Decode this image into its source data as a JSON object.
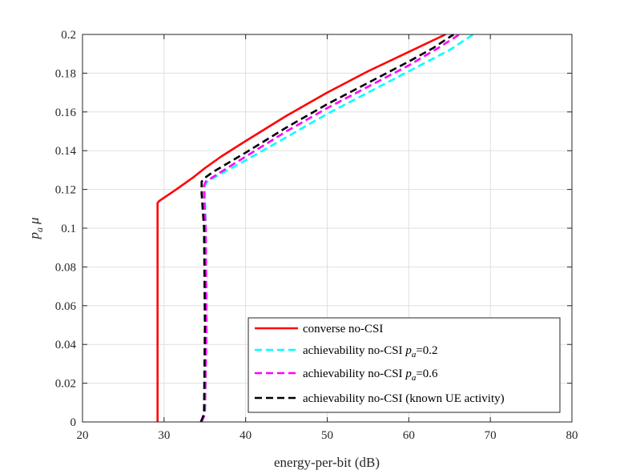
{
  "chart_data": {
    "type": "line",
    "title": "",
    "xlabel": "energy-per-bit (dB)",
    "ylabel": {
      "p": "p",
      "sub": "a",
      "mu": "μ"
    },
    "xlim": [
      20,
      80
    ],
    "ylim": [
      0,
      0.2
    ],
    "xticks": [
      20,
      30,
      40,
      50,
      60,
      70,
      80
    ],
    "yticks": [
      0,
      0.02,
      0.04,
      0.06,
      0.08,
      0.1,
      0.12,
      0.14,
      0.16,
      0.18,
      0.2
    ],
    "xtick_labels": [
      "20",
      "30",
      "40",
      "50",
      "60",
      "70",
      "80"
    ],
    "ytick_labels": [
      "0",
      "0.02",
      "0.04",
      "0.06",
      "0.08",
      "0.1",
      "0.12",
      "0.14",
      "0.16",
      "0.18",
      "0.2"
    ],
    "grid": true,
    "legend_position": "bottom-right",
    "series": [
      {
        "name": "converse no-CSI",
        "legend": {
          "text": "converse no-CSI"
        },
        "color": "#ff0000",
        "dash": "solid",
        "x": [
          29.2,
          29.2,
          29.2,
          29.4,
          31.5,
          33.5,
          35.0,
          37.0,
          40.0,
          45.0,
          50.0,
          55.0,
          60.0,
          64.5
        ],
        "y": [
          0,
          0.05,
          0.113,
          0.114,
          0.12,
          0.126,
          0.131,
          0.137,
          0.145,
          0.158,
          0.17,
          0.181,
          0.191,
          0.2
        ]
      },
      {
        "name": "achievability no-CSI pa=0.2",
        "legend": {
          "text": "achievability no-CSI ",
          "var": "p",
          "sub": "a",
          "suffix": "=0.2"
        },
        "color": "#00ffff",
        "dash": "dashed",
        "x": [
          34.6,
          35.0,
          35.2,
          35.1,
          35.0,
          35.0,
          35.3,
          36.5,
          40.0,
          45.0,
          50.0,
          55.0,
          60.0,
          65.0,
          67.9
        ],
        "y": [
          0,
          0.004,
          0.05,
          0.1,
          0.118,
          0.122,
          0.124,
          0.127,
          0.135,
          0.147,
          0.159,
          0.17,
          0.181,
          0.192,
          0.2
        ]
      },
      {
        "name": "achievability no-CSI pa=0.6",
        "legend": {
          "text": "achievability no-CSI ",
          "var": "p",
          "sub": "a",
          "suffix": "=0.6"
        },
        "color": "#ff00ff",
        "dash": "dashed",
        "x": [
          34.6,
          35.0,
          35.2,
          35.1,
          34.9,
          34.9,
          35.1,
          36.2,
          40.0,
          45.0,
          50.0,
          55.0,
          60.0,
          64.0,
          66.2
        ],
        "y": [
          0,
          0.004,
          0.05,
          0.1,
          0.118,
          0.122,
          0.124,
          0.127,
          0.137,
          0.15,
          0.162,
          0.173,
          0.184,
          0.194,
          0.2
        ]
      },
      {
        "name": "achievability no-CSI (known UE activity)",
        "legend": {
          "text": "achievability no-CSI (known UE activity)"
        },
        "color": "#000000",
        "dash": "dashed",
        "x": [
          34.5,
          34.9,
          35.0,
          34.9,
          34.6,
          34.6,
          35.0,
          36.0,
          40.0,
          45.0,
          50.0,
          55.0,
          60.0,
          63.0,
          65.5
        ],
        "y": [
          0,
          0.004,
          0.05,
          0.1,
          0.118,
          0.124,
          0.126,
          0.129,
          0.139,
          0.152,
          0.164,
          0.175,
          0.186,
          0.193,
          0.2
        ]
      }
    ]
  }
}
